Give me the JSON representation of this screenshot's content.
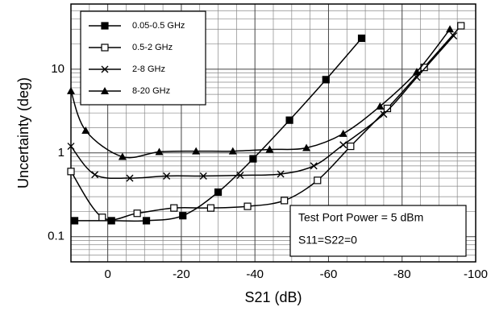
{
  "chart_data": {
    "type": "line",
    "xlabel": "S21 (dB)",
    "ylabel": "Uncertainty (deg)",
    "xlim": [
      10,
      -100
    ],
    "ylim": [
      0.05,
      60
    ],
    "log_y": true,
    "grid": true,
    "xticks": [
      0,
      -20,
      -40,
      -60,
      -80,
      -100
    ],
    "yticks": [
      0.1,
      1,
      10
    ],
    "x_minor_ticks": [
      5,
      -5,
      -10,
      -15,
      -25,
      -30,
      -35,
      -45,
      -50,
      -55,
      -65,
      -70,
      -75,
      -85,
      -90,
      -95
    ],
    "y_minor_ticks": [
      0.06,
      0.07,
      0.08,
      0.09,
      0.2,
      0.3,
      0.4,
      0.5,
      0.6,
      0.7,
      0.8,
      0.9,
      2,
      3,
      4,
      5,
      6,
      7,
      8,
      9,
      20,
      30,
      40,
      50
    ],
    "legend": "upper left",
    "annotation": [
      "Test Port Power = 5 dBm",
      "S11=S22=0"
    ],
    "series": [
      {
        "name": "0.05-0.5 GHz",
        "color": "#000000",
        "marker": "square-filled",
        "x": [
          9,
          -1,
          -10.5,
          -20.4,
          -30,
          -39.5,
          -49.4,
          -59.3,
          -69
        ],
        "values": [
          0.155,
          0.155,
          0.155,
          0.178,
          0.34,
          0.85,
          2.46,
          7.5,
          23.4
        ]
      },
      {
        "name": "0.5-2 GHz",
        "color": "#000000",
        "marker": "square-open",
        "x": [
          10,
          1.5,
          -8,
          -18,
          -28,
          -38,
          -48,
          -57,
          -66,
          -76,
          -86,
          -96
        ],
        "values": [
          0.6,
          0.17,
          0.19,
          0.22,
          0.22,
          0.23,
          0.27,
          0.47,
          1.2,
          3.4,
          10.5,
          33
        ]
      },
      {
        "name": "2-8 GHz",
        "color": "#000000",
        "marker": "x",
        "x": [
          10,
          3.5,
          -6,
          -16,
          -26,
          -36,
          -47,
          -56,
          -64,
          -75,
          -84,
          -94
        ],
        "values": [
          1.2,
          0.55,
          0.5,
          0.53,
          0.53,
          0.54,
          0.56,
          0.7,
          1.25,
          2.9,
          8,
          25
        ]
      },
      {
        "name": "8-20 GHz",
        "color": "#000000",
        "marker": "triangle",
        "x": [
          10,
          6,
          -4,
          -14,
          -24,
          -34,
          -44,
          -54,
          -64,
          -74,
          -84,
          -93
        ],
        "values": [
          5.5,
          1.85,
          0.9,
          1.03,
          1.05,
          1.05,
          1.1,
          1.15,
          1.7,
          3.6,
          9.3,
          30
        ]
      }
    ]
  }
}
